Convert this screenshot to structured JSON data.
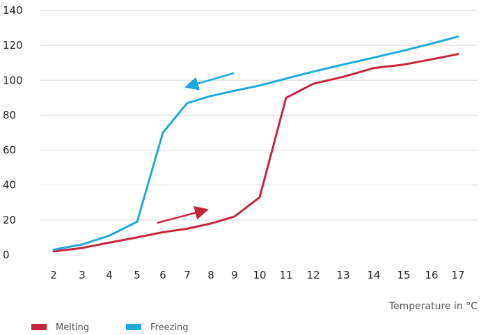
{
  "chart_data": {
    "type": "line",
    "title": "",
    "xlabel": "Temperature in °C",
    "ylabel": "",
    "ylim": [
      0,
      140
    ],
    "yticks": [
      0,
      20,
      40,
      60,
      80,
      100,
      120,
      140
    ],
    "xtick_labels": [
      "2",
      "3",
      "4",
      "5",
      "6",
      "7",
      "8",
      "9",
      "10",
      "11",
      "12",
      "13",
      "14",
      "15",
      "16",
      "17"
    ],
    "grid": true,
    "legend_position": "bottom-left",
    "series": [
      {
        "name": "Melting",
        "color": "#c8243c",
        "points": [
          [
            2,
            2
          ],
          [
            3,
            4
          ],
          [
            4,
            7
          ],
          [
            5,
            10
          ],
          [
            6,
            13
          ],
          [
            7,
            15
          ],
          [
            8,
            18
          ],
          [
            9,
            22
          ],
          [
            10,
            33
          ],
          [
            11,
            90
          ],
          [
            12,
            98
          ],
          [
            13,
            102
          ],
          [
            14,
            107
          ],
          [
            15,
            109
          ],
          [
            16,
            112
          ],
          [
            17,
            115
          ]
        ]
      },
      {
        "name": "Freezing",
        "color": "#1ea9dc",
        "points": [
          [
            2,
            3
          ],
          [
            3,
            6
          ],
          [
            4,
            11
          ],
          [
            5,
            19
          ],
          [
            6,
            70
          ],
          [
            7,
            87
          ],
          [
            8,
            91
          ],
          [
            9,
            94
          ],
          [
            10,
            97
          ],
          [
            11,
            101
          ],
          [
            12,
            105
          ],
          [
            13,
            109
          ],
          [
            14,
            113
          ],
          [
            15,
            117
          ],
          [
            16,
            121
          ],
          [
            17,
            125
          ]
        ]
      }
    ],
    "annotations": [
      {
        "type": "arrow",
        "series": "Freezing",
        "direction": "left"
      },
      {
        "type": "arrow",
        "series": "Melting",
        "direction": "right"
      }
    ]
  }
}
